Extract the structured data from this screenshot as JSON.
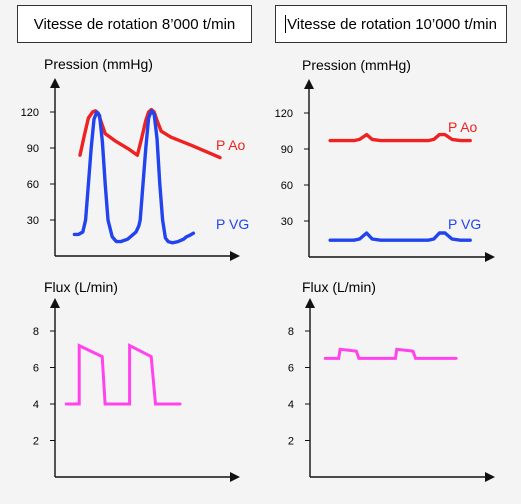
{
  "titles": {
    "left": "Vitesse de rotation 8’000 t/min",
    "right": "Vitesse de rotation 10’000 t/min"
  },
  "colors": {
    "p_ao": "#ee2222",
    "p_vg": "#2244ee",
    "flux": "#ff44ee",
    "axis": "#111111"
  },
  "chart_data": [
    {
      "id": "pressure-8000",
      "type": "line",
      "ylabel": "Pression (mmHg)",
      "yticks": [
        30,
        60,
        90,
        120
      ],
      "ylim": [
        0,
        150
      ],
      "xlim": [
        0,
        100
      ],
      "grid": false,
      "series": [
        {
          "name": "P Ao",
          "color": "#ee2222",
          "x": [
            0,
            3,
            6,
            9,
            11,
            13,
            15,
            18,
            25,
            35,
            41,
            44,
            47,
            49,
            51,
            53,
            55,
            58,
            65,
            80,
            100
          ],
          "y": [
            84,
            100,
            115,
            120,
            121,
            119,
            112,
            102,
            96,
            89,
            84,
            98,
            113,
            120,
            122,
            120,
            113,
            104,
            99,
            92,
            82
          ]
        },
        {
          "name": "P VG",
          "color": "#2244ee",
          "x": [
            -4,
            -1,
            2,
            4,
            6,
            8,
            10,
            12,
            14,
            16,
            18,
            20,
            23,
            26,
            29,
            34,
            38,
            40,
            42,
            43,
            45,
            47,
            49,
            51,
            53,
            55,
            57,
            59,
            61,
            63,
            66,
            70,
            74,
            76,
            78,
            81
          ],
          "y": [
            18,
            18,
            20,
            30,
            60,
            90,
            114,
            120,
            117,
            95,
            60,
            30,
            16,
            12,
            12,
            14,
            18,
            20,
            25,
            30,
            60,
            90,
            115,
            121,
            118,
            98,
            60,
            30,
            15,
            12,
            11,
            12,
            14,
            16,
            17,
            19
          ]
        }
      ]
    },
    {
      "id": "pressure-10000",
      "type": "line",
      "ylabel": "Pression (mmHg)",
      "yticks": [
        30,
        60,
        90,
        120
      ],
      "ylim": [
        0,
        150
      ],
      "xlim": [
        0,
        100
      ],
      "grid": false,
      "series": [
        {
          "name": "P Ao",
          "color": "#ee2222",
          "x": [
            -7,
            2,
            10,
            14,
            19,
            23,
            29,
            37,
            44,
            51,
            58,
            63,
            67,
            71,
            75,
            80,
            86,
            93
          ],
          "y": [
            97,
            97,
            97,
            98,
            102,
            98,
            97,
            97,
            97,
            97,
            97,
            97,
            98,
            102,
            102,
            98,
            97,
            97
          ]
        },
        {
          "name": "P VG",
          "color": "#2244ee",
          "x": [
            -7,
            2,
            10,
            14,
            19,
            23,
            29,
            37,
            44,
            51,
            58,
            63,
            67,
            71,
            75,
            80,
            86,
            93
          ],
          "y": [
            14,
            14,
            14,
            15,
            20,
            15,
            14,
            14,
            14,
            14,
            14,
            14,
            15,
            20,
            20,
            15,
            14,
            14
          ]
        }
      ]
    },
    {
      "id": "flux-8000",
      "type": "line",
      "ylabel": "Flux (L/min)",
      "yticks": [
        2,
        4,
        6,
        8
      ],
      "ylim": [
        0,
        10
      ],
      "xlim": [
        0,
        100
      ],
      "grid": false,
      "series": [
        {
          "name": "",
          "color": "#ff44ee",
          "x": [
            -4,
            5,
            5,
            21,
            23,
            23,
            40,
            40,
            55,
            58,
            58,
            75
          ],
          "y": [
            4,
            4,
            7.2,
            6.6,
            4,
            4,
            4,
            7.2,
            6.6,
            4,
            4,
            4
          ]
        }
      ]
    },
    {
      "id": "flux-10000",
      "type": "line",
      "ylabel": "Flux (L/min)",
      "yticks": [
        2,
        4,
        6,
        8
      ],
      "ylim": [
        0,
        10
      ],
      "xlim": [
        0,
        100
      ],
      "grid": false,
      "series": [
        {
          "name": "",
          "color": "#ff44ee",
          "x": [
            -8,
            2,
            3,
            15,
            17,
            24,
            32,
            38,
            44,
            45,
            57,
            59,
            66,
            76,
            89
          ],
          "y": [
            6.5,
            6.5,
            7,
            6.9,
            6.5,
            6.5,
            6.5,
            6.5,
            6.5,
            7,
            6.9,
            6.5,
            6.5,
            6.5,
            6.5
          ]
        }
      ]
    }
  ]
}
